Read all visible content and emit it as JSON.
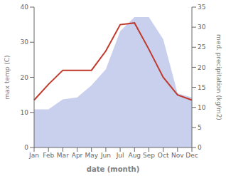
{
  "chart_data": {
    "type": "line",
    "categories": [
      "Jan",
      "Feb",
      "Mar",
      "Apr",
      "May",
      "Jun",
      "Jul",
      "Aug",
      "Sep",
      "Oct",
      "Nov",
      "Dec"
    ],
    "xlabel": "date (month)",
    "ylabel": "max temp (C)",
    "y2label": "med. precipitation (kg/m2)",
    "series": [
      {
        "type": "area",
        "color": "#c8d0ee",
        "axis": "y2",
        "values": [
          9.5,
          9.5,
          12.0,
          12.5,
          15.5,
          19.5,
          29.0,
          32.5,
          32.5,
          27.0,
          13.5,
          12.5
        ]
      },
      {
        "type": "line",
        "color": "#c0392b",
        "values": [
          13.5,
          18.0,
          22.0,
          22.0,
          22.0,
          27.5,
          35.0,
          35.5,
          28.0,
          20.0,
          15.0,
          13.5
        ]
      }
    ],
    "ylim": [
      0,
      40
    ],
    "yticks": [
      0,
      10,
      20,
      30,
      40
    ],
    "y2lim": [
      0,
      35
    ],
    "y2ticks": [
      0,
      5,
      10,
      15,
      20,
      25,
      30,
      35
    ],
    "grid": false
  }
}
